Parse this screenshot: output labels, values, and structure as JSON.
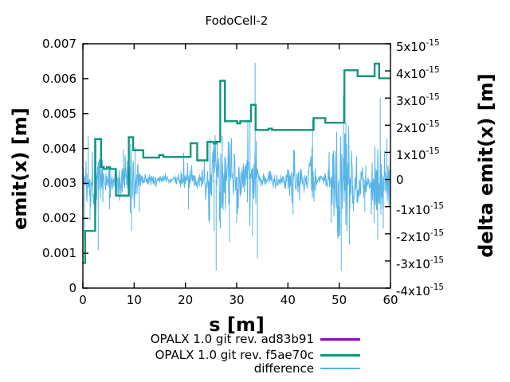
{
  "title": "FodoCell-2",
  "axes": {
    "x": {
      "label": "s [m]",
      "range": [
        0,
        60
      ],
      "ticks": [
        [
          0,
          "0"
        ],
        [
          10,
          "10"
        ],
        [
          20,
          "20"
        ],
        [
          30,
          "30"
        ],
        [
          40,
          "40"
        ],
        [
          50,
          "50"
        ],
        [
          60,
          "60"
        ]
      ]
    },
    "y_left": {
      "label": "emit(x) [m]",
      "range": [
        0,
        0.007
      ],
      "ticks": [
        [
          0,
          "0"
        ],
        [
          0.001,
          "0.001"
        ],
        [
          0.002,
          "0.002"
        ],
        [
          0.003,
          "0.003"
        ],
        [
          0.004,
          "0.004"
        ],
        [
          0.005,
          "0.005"
        ],
        [
          0.006,
          "0.006"
        ],
        [
          0.007,
          "0.007"
        ]
      ]
    },
    "y_right": {
      "label": "delta emit(x) [m]",
      "range_in_1e15": [
        -4,
        5
      ],
      "exponent": "-15",
      "ticks": [
        [
          -4,
          "-4"
        ],
        [
          -3,
          "-3"
        ],
        [
          -2,
          "-2"
        ],
        [
          -1,
          "-1"
        ],
        [
          0,
          "0"
        ],
        [
          1,
          "1"
        ],
        [
          2,
          "2"
        ],
        [
          3,
          "3"
        ],
        [
          4,
          "4"
        ],
        [
          5,
          "5"
        ]
      ]
    }
  },
  "legend": [
    {
      "label": "OPALX 1.0 git rev. ad83b91",
      "color": "#9400d3"
    },
    {
      "label": "OPALX 1.0 git rev. f5ae70c",
      "color": "#009e73"
    },
    {
      "label": "difference",
      "color": "#56b4e9"
    }
  ],
  "chart_data": {
    "type": "line",
    "title": "FodoCell-2",
    "xlabel": "s [m]",
    "ylabel_left": "emit(x) [m]",
    "ylabel_right": "delta emit(x) [m]",
    "x_range": [
      0,
      60
    ],
    "y_left_range": [
      0,
      0.007
    ],
    "y_right_range_in_1e15": [
      -4,
      5
    ],
    "grid": false,
    "legend_position": "below-plot-right",
    "series": [
      {
        "name": "OPALX 1.0 git rev. ad83b91",
        "axis": "left",
        "color": "#9400d3",
        "style": "steps",
        "line_width": 2.2,
        "steps": "same_as_next_series",
        "note": "identical to f5ae70c curve, completely overdrawn by it"
      },
      {
        "name": "OPALX 1.0 git rev. f5ae70c",
        "axis": "left",
        "color": "#009e73",
        "style": "steps",
        "line_width": 2.2,
        "steps": [
          [
            0,
            0.00072
          ],
          [
            0.45,
            0.00164
          ],
          [
            2.4,
            0.00427
          ],
          [
            3.55,
            0.00347
          ],
          [
            4.1,
            0.00341
          ],
          [
            4.7,
            0.00346
          ],
          [
            5.3,
            0.00341
          ],
          [
            6.45,
            0.00265
          ],
          [
            8.95,
            0.00432
          ],
          [
            9.8,
            0.00395
          ],
          [
            11.8,
            0.00374
          ],
          [
            14.9,
            0.00381
          ],
          [
            15.7,
            0.00376
          ],
          [
            21.0,
            0.00415
          ],
          [
            22.3,
            0.00366
          ],
          [
            24.3,
            0.00419
          ],
          [
            25.5,
            0.00414
          ],
          [
            26.0,
            0.00419
          ],
          [
            26.8,
            0.00594
          ],
          [
            27.7,
            0.00478
          ],
          [
            30.1,
            0.00472
          ],
          [
            30.7,
            0.00478
          ],
          [
            32.8,
            0.00525
          ],
          [
            33.7,
            0.00453
          ],
          [
            36.2,
            0.00457
          ],
          [
            36.9,
            0.00453
          ],
          [
            45.0,
            0.00487
          ],
          [
            47.3,
            0.00474
          ],
          [
            51.0,
            0.00624
          ],
          [
            53.6,
            0.00607
          ],
          [
            56.9,
            0.00643
          ],
          [
            57.8,
            0.00601
          ],
          [
            60,
            0.00601
          ]
        ]
      },
      {
        "name": "difference",
        "axis": "right",
        "color": "#56b4e9",
        "style": "noise-band",
        "line_width": 1,
        "unit": "1e-15",
        "baseline": 0,
        "seed": 1337,
        "envelope": [
          [
            0,
            0.6
          ],
          [
            0.6,
            0.9
          ],
          [
            1.2,
            1.0
          ],
          [
            2,
            0.8
          ],
          [
            2.7,
            1.0
          ],
          [
            3.3,
            0.75
          ],
          [
            4,
            0.6
          ],
          [
            4.8,
            0.55
          ],
          [
            5.6,
            0.4
          ],
          [
            6.2,
            0.3
          ],
          [
            6.8,
            0.6
          ],
          [
            7.6,
            0.7
          ],
          [
            8.5,
            0.8
          ],
          [
            9.3,
            1.0
          ],
          [
            10.3,
            0.85
          ],
          [
            11.3,
            0.3
          ],
          [
            11.8,
            0.15
          ],
          [
            12.8,
            0.17
          ],
          [
            13.8,
            0.2
          ],
          [
            14.8,
            0.15
          ],
          [
            16,
            0.1
          ],
          [
            17.5,
            0.1
          ],
          [
            18.5,
            0.13
          ],
          [
            19.2,
            0.35
          ],
          [
            20,
            0.5
          ],
          [
            20.8,
            0.55
          ],
          [
            21.7,
            0.35
          ],
          [
            22.5,
            0.25
          ],
          [
            23.5,
            0.3
          ],
          [
            24.2,
            0.9
          ],
          [
            25,
            1.3
          ],
          [
            26,
            1.45
          ],
          [
            27,
            1.25
          ],
          [
            28,
            1.15
          ],
          [
            29,
            1.05
          ],
          [
            30,
            0.95
          ],
          [
            31,
            0.85
          ],
          [
            32,
            1.1
          ],
          [
            33,
            1.35
          ],
          [
            33.8,
            1.2
          ],
          [
            34.3,
            0.5
          ],
          [
            34.8,
            0.2
          ],
          [
            35.8,
            0.15
          ],
          [
            36.6,
            0.3
          ],
          [
            37.4,
            0.2
          ],
          [
            38.4,
            0.12
          ],
          [
            39.4,
            0.25
          ],
          [
            40.3,
            0.6
          ],
          [
            41.2,
            0.8
          ],
          [
            42.2,
            0.6
          ],
          [
            43.2,
            0.4
          ],
          [
            44.2,
            0.7
          ],
          [
            45.2,
            0.6
          ],
          [
            45.8,
            0.1
          ],
          [
            47.2,
            0.1
          ],
          [
            47.9,
            0.9
          ],
          [
            48.8,
            1.3
          ],
          [
            49.8,
            1.6
          ],
          [
            50.8,
            1.6
          ],
          [
            51.8,
            1.3
          ],
          [
            52.8,
            1.0
          ],
          [
            53.6,
            0.6
          ],
          [
            54.6,
            0.7
          ],
          [
            55.4,
            0.6
          ],
          [
            56.2,
            0.9
          ],
          [
            57,
            1.0
          ],
          [
            57.9,
            1.2
          ],
          [
            58.8,
            1.0
          ],
          [
            59.4,
            0.85
          ],
          [
            60,
            0.7
          ]
        ],
        "spikes": [
          [
            0.3,
            -2.2
          ],
          [
            1.05,
            1.6
          ],
          [
            1.4,
            -1.5
          ],
          [
            2.55,
            1.5
          ],
          [
            3.0,
            -2.6
          ],
          [
            5.2,
            -1.1
          ],
          [
            7.9,
            1.1
          ],
          [
            9.5,
            -1.9
          ],
          [
            10.2,
            1.2
          ],
          [
            11.0,
            -1.2
          ],
          [
            20.6,
            -1.1
          ],
          [
            24.8,
            1.5
          ],
          [
            25.6,
            -1.9
          ],
          [
            26.0,
            -3.35
          ],
          [
            27.2,
            1.6
          ],
          [
            28.6,
            -2.3
          ],
          [
            30.0,
            -1.6
          ],
          [
            32.6,
            2.2
          ],
          [
            33.1,
            -2.1
          ],
          [
            33.6,
            4.3
          ],
          [
            34.05,
            -2.9
          ],
          [
            41.0,
            -1.3
          ],
          [
            44.8,
            2.2
          ],
          [
            48.4,
            -1.6
          ],
          [
            49.9,
            -2.1
          ],
          [
            50.4,
            -3.35
          ],
          [
            50.8,
            3.1
          ],
          [
            51.3,
            2.1
          ],
          [
            52.0,
            -2.4
          ],
          [
            55.0,
            -1.2
          ],
          [
            56.8,
            -1.6
          ],
          [
            57.5,
            -2.2
          ],
          [
            58.0,
            3.0
          ],
          [
            58.6,
            -1.8
          ],
          [
            59.3,
            1.5
          ]
        ]
      }
    ]
  }
}
